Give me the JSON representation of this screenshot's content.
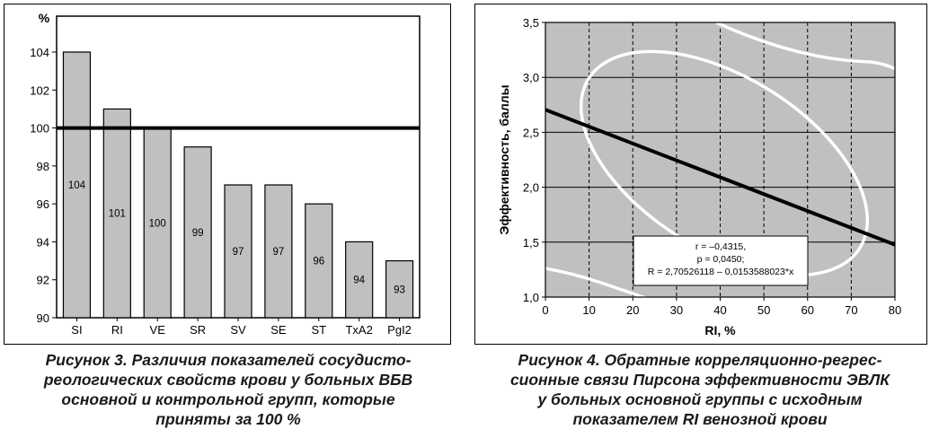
{
  "chart_data": [
    {
      "type": "bar",
      "categories": [
        "SI",
        "RI",
        "VE",
        "SR",
        "SV",
        "SE",
        "ST",
        "TxA2",
        "PgI2"
      ],
      "values": [
        104,
        101,
        100,
        99,
        97,
        97,
        96,
        94,
        93
      ],
      "data_labels": [
        "104",
        "101",
        "100",
        "99",
        "97",
        "97",
        "96",
        "94",
        "93"
      ],
      "ylabel": "%",
      "ylim": [
        90,
        104
      ],
      "yticks": [
        "90",
        "92",
        "94",
        "96",
        "98",
        "100",
        "102",
        "104"
      ],
      "reference_line": 100,
      "bar_color": "#c0c0c0",
      "grid": false,
      "legend": "none"
    },
    {
      "type": "scatter",
      "xlabel": "RI, %",
      "ylabel": "Эффективность, баллы",
      "xlim": [
        0,
        80
      ],
      "ylim": [
        1.0,
        3.5
      ],
      "xticks": [
        "0",
        "10",
        "20",
        "30",
        "40",
        "50",
        "60",
        "70",
        "80"
      ],
      "yticks": [
        "1,0",
        "1,5",
        "2,0",
        "2,5",
        "3,0",
        "3,5"
      ],
      "grid": true,
      "background_color": "#c0c0c0",
      "regression": {
        "intercept": 2.70526118,
        "slope": -0.0153588023
      },
      "annotation": [
        "r = –0,4315,",
        "p = 0,0450;",
        "R = 2,70526118 – 0,0153588023*x"
      ],
      "legend": "none"
    }
  ],
  "captions": {
    "figure3": [
      "Рисунок 3. Различия показателей сосудисто-",
      "реологических свойств крови у больных ВБВ",
      "основной и контрольной групп, которые",
      "приняты за 100 %"
    ],
    "figure4": [
      "Рисунок 4. Обратные корреляционно-регрес-",
      "сионные связи Пирсона эффективности ЭВЛК",
      "у больных основной группы с исходным",
      "показателем RI венозной крови"
    ]
  }
}
